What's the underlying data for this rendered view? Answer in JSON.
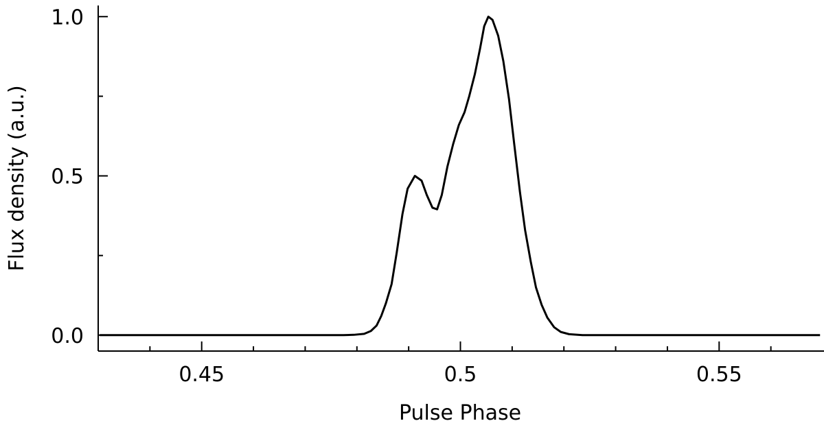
{
  "chart_data": {
    "type": "line",
    "xlabel": "Pulse Phase",
    "ylabel": "Flux density (a.u.)",
    "xlim": [
      0.43,
      0.57
    ],
    "ylim": [
      -0.05,
      1.035
    ],
    "xticks": [
      0.45,
      0.5,
      0.55
    ],
    "yticks": [
      {
        "value": 0,
        "label": "0.0"
      },
      0.5,
      {
        "value": 1,
        "label": "1.0"
      }
    ],
    "xminorticks": [
      0.44,
      0.46,
      0.47,
      0.48,
      0.49,
      0.51,
      0.52,
      0.53,
      0.54,
      0.56
    ],
    "yminorticks": [
      0.25,
      0.75
    ],
    "color": "#000000",
    "x": [
      0.4303,
      0.4774,
      0.4794,
      0.4814,
      0.4827,
      0.4838,
      0.4847,
      0.4856,
      0.4867,
      0.4877,
      0.4888,
      0.4898,
      0.4912,
      0.4925,
      0.4935,
      0.4946,
      0.4955,
      0.4964,
      0.4975,
      0.4986,
      0.4997,
      0.5008,
      0.5017,
      0.5028,
      0.5038,
      0.5046,
      0.5054,
      0.5062,
      0.5073,
      0.5083,
      0.5094,
      0.5104,
      0.5115,
      0.5125,
      0.5136,
      0.5146,
      0.5157,
      0.5168,
      0.5181,
      0.5194,
      0.521,
      0.5236,
      0.5695
    ],
    "values": [
      0,
      0,
      0.001,
      0.004,
      0.013,
      0.03,
      0.06,
      0.1,
      0.16,
      0.26,
      0.38,
      0.46,
      0.5,
      0.485,
      0.44,
      0.4,
      0.395,
      0.44,
      0.53,
      0.6,
      0.66,
      0.7,
      0.75,
      0.82,
      0.9,
      0.97,
      1.0,
      0.99,
      0.94,
      0.86,
      0.74,
      0.6,
      0.45,
      0.33,
      0.23,
      0.15,
      0.095,
      0.055,
      0.025,
      0.01,
      0.003,
      0,
      0
    ]
  }
}
